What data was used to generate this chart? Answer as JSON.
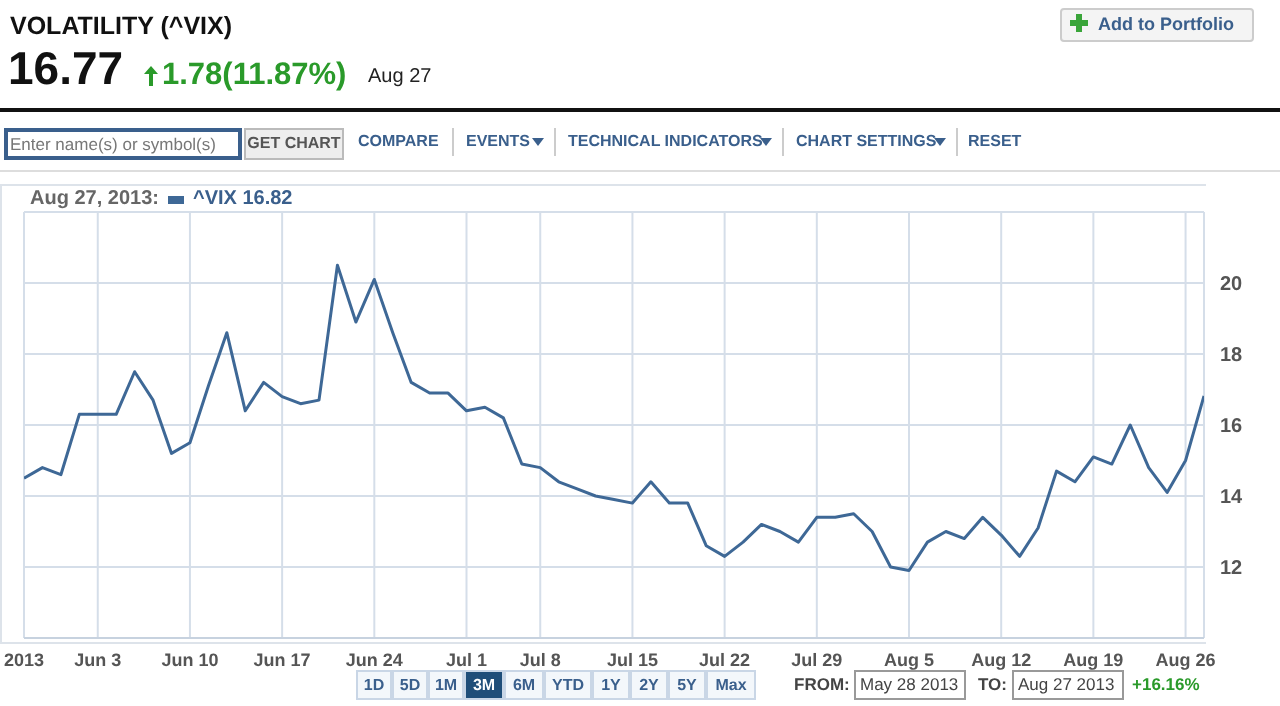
{
  "chart_data": {
    "type": "line",
    "title": "VOLATILITY (^VIX)",
    "legend_title": "Aug 27, 2013:",
    "categories": [
      "2013",
      null,
      null,
      null,
      "Jun 3",
      null,
      null,
      null,
      null,
      "Jun 10",
      null,
      null,
      null,
      null,
      "Jun 17",
      null,
      null,
      null,
      null,
      "Jun 24",
      null,
      null,
      null,
      null,
      "Jul 1",
      null,
      null,
      null,
      "Jul 8",
      null,
      null,
      null,
      null,
      "Jul 15",
      null,
      null,
      null,
      null,
      "Jul 22",
      null,
      null,
      null,
      null,
      "Jul 29",
      null,
      null,
      null,
      null,
      "Aug 5",
      null,
      null,
      null,
      null,
      "Aug 12",
      null,
      null,
      null,
      null,
      "Aug 19",
      null,
      null,
      null,
      null,
      "Aug 26",
      null
    ],
    "series": [
      {
        "name": "^VIX 16.82",
        "color": "#3e6896",
        "values": [
          14.5,
          14.8,
          14.6,
          16.3,
          16.3,
          16.3,
          17.5,
          16.7,
          15.2,
          15.5,
          17.1,
          18.6,
          16.4,
          17.2,
          16.8,
          16.6,
          16.7,
          20.5,
          18.9,
          20.1,
          18.6,
          17.2,
          16.9,
          16.9,
          16.4,
          16.5,
          16.2,
          14.9,
          14.8,
          14.4,
          14.2,
          14.0,
          13.9,
          13.8,
          14.4,
          13.8,
          13.8,
          12.6,
          12.3,
          12.7,
          13.2,
          13.0,
          12.7,
          13.4,
          13.4,
          13.5,
          13.0,
          12.0,
          11.9,
          12.7,
          13.0,
          12.8,
          13.4,
          12.9,
          12.3,
          13.1,
          14.7,
          14.4,
          15.1,
          14.9,
          16.0,
          14.8,
          14.1,
          15.0,
          16.82
        ]
      }
    ],
    "ylim": [
      10,
      22
    ],
    "yticks": [
      12,
      14,
      16,
      18,
      20
    ],
    "grid": true,
    "legend": "top left",
    "marker": "none",
    "line_style": "solid",
    "annotations": [
      "16.77",
      "1.78(11.87%)",
      "Aug 27",
      "Add to Portfolio",
      "Enter name(s) or symbol(s)",
      "GET CHART",
      "COMPARE",
      "EVENTS",
      "TECHNICAL INDICATORS",
      "CHART SETTINGS",
      "RESET",
      "1D",
      "5D",
      "1M",
      "3M",
      "6M",
      "YTD",
      "1Y",
      "2Y",
      "5Y",
      "Max",
      "FROM:",
      "May 28 2013",
      "TO:",
      "Aug 27 2013",
      "+16.16%"
    ]
  }
}
